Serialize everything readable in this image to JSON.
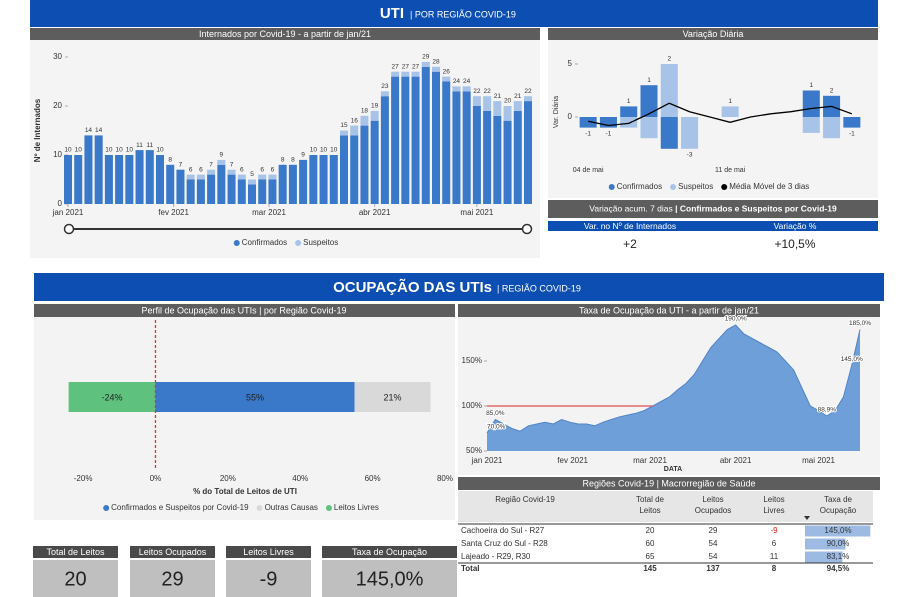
{
  "header": {
    "title": "UTI",
    "subtitle": "| POR REGIÃO COVID-19"
  },
  "chart_data": [
    {
      "type": "stacked_bar",
      "title": "Internados por Covid-19 - a partir de jan/21",
      "ylabel": "Nº de Internados",
      "x": [
        0,
        3,
        6,
        9,
        12,
        15,
        18,
        21,
        24,
        27,
        30,
        33,
        36,
        39,
        42,
        45,
        48,
        51,
        54,
        57,
        60,
        63,
        66,
        69,
        72,
        75,
        78,
        81,
        84,
        87,
        90,
        93,
        96,
        99,
        102,
        105,
        108,
        111,
        114,
        117,
        120,
        123,
        126,
        129,
        132,
        135
      ],
      "xlim": [
        0,
        135
      ],
      "xticks": [
        {
          "value": 0,
          "label": "jan 2021"
        },
        {
          "value": 31,
          "label": "fev 2021"
        },
        {
          "value": 59,
          "label": "mar 2021"
        },
        {
          "value": 90,
          "label": "abr 2021"
        },
        {
          "value": 120,
          "label": "mai 2021"
        }
      ],
      "ylim": [
        0,
        30
      ],
      "yticks": [
        0,
        10,
        20,
        30
      ],
      "series": [
        {
          "name": "Confirmados",
          "color": "#3a78c9",
          "values": [
            10,
            10,
            14,
            14,
            10,
            10,
            10,
            11,
            11,
            10,
            8,
            7,
            5,
            5,
            6,
            8,
            6,
            5,
            4,
            5,
            5,
            8,
            8,
            9,
            10,
            10,
            10,
            14,
            14,
            16,
            17,
            22,
            26,
            26,
            26,
            28,
            27,
            25,
            23,
            23,
            20,
            19,
            18,
            17,
            19,
            21
          ]
        },
        {
          "name": "Suspeitos",
          "color": "#a8c3e8",
          "values": [
            0,
            0,
            0,
            0,
            0,
            0,
            0,
            0,
            0,
            0,
            0,
            0,
            1,
            1,
            1,
            1,
            1,
            1,
            1,
            1,
            1,
            0,
            0,
            0,
            0,
            0,
            0,
            1,
            2,
            2,
            2,
            1,
            1,
            1,
            1,
            1,
            1,
            1,
            1,
            1,
            2,
            3,
            3,
            3,
            2,
            1
          ]
        }
      ],
      "totals": [
        10,
        10,
        14,
        14,
        10,
        10,
        10,
        11,
        11,
        10,
        8,
        7,
        6,
        6,
        7,
        9,
        7,
        6,
        5,
        6,
        6,
        8,
        8,
        9,
        10,
        10,
        10,
        15,
        16,
        18,
        19,
        23,
        27,
        27,
        27,
        29,
        28,
        26,
        24,
        24,
        22,
        22,
        21,
        20,
        21,
        22
      ]
    },
    {
      "type": "diverging_bar",
      "title": "Variação Diária",
      "ylabel": "Var. Diária",
      "categories": [
        "04 de mai",
        null,
        null,
        null,
        null,
        null,
        null,
        "11 de mai",
        null,
        null,
        null,
        null,
        null,
        null
      ],
      "ylim": [
        -5,
        6
      ],
      "yticks": [
        0,
        5
      ],
      "series": [
        {
          "name": "Confirmados",
          "color": "#3a78c9",
          "values": [
            -1,
            -1,
            1,
            3,
            -3,
            0,
            0,
            0,
            0,
            0,
            0,
            2.5,
            2,
            -1
          ]
        },
        {
          "name": "Suspeitos",
          "color": "#a8c3e8",
          "values": [
            0,
            0,
            -1,
            -2,
            5,
            -3,
            0,
            1,
            0,
            0,
            0,
            -1.5,
            -2,
            0
          ]
        },
        {
          "name": "Média Móvel de 3 dias",
          "color": "#000000",
          "type": "line",
          "values": [
            -0.4,
            -0.8,
            -0.6,
            0.3,
            1.3,
            0.5,
            0,
            -0.5,
            0,
            0.3,
            0.5,
            0.8,
            1,
            0.3
          ]
        }
      ],
      "labels": [
        -1,
        -1,
        1,
        1,
        2,
        -3,
        null,
        1,
        null,
        null,
        null,
        1,
        2,
        -1
      ]
    },
    {
      "type": "stacked_hbar",
      "title": "Perfil de Ocupação das UTIs | por Região Covid-19",
      "xlabel": "% do Total de Leitos de UTI",
      "xlim": [
        -25,
        80
      ],
      "xticks": [
        {
          "value": -20,
          "label": "-20%"
        },
        {
          "value": 0,
          "label": "0%"
        },
        {
          "value": 20,
          "label": "20%"
        },
        {
          "value": 40,
          "label": "40%"
        },
        {
          "value": 60,
          "label": "60%"
        },
        {
          "value": 80,
          "label": "80%"
        }
      ],
      "reference_line": 0,
      "series": [
        {
          "name": "Confirmados e Suspeitos por Covid-19",
          "color": "#3a78c9",
          "values": [
            55
          ],
          "value_labels": [
            "55%"
          ]
        },
        {
          "name": "Outras Causas",
          "color": "#d9d9d9",
          "values": [
            21
          ],
          "value_labels": [
            "21%"
          ]
        },
        {
          "name": "Leitos Livres",
          "color": "#5ec27e",
          "values": [
            -24
          ],
          "value_labels": [
            "-24%"
          ]
        }
      ]
    },
    {
      "type": "area",
      "title": "Taxa de Ocupação da UTI - a partir de jan/21",
      "xlabel": "DATA",
      "color": "#6f9fd8",
      "x": [
        0,
        3,
        6,
        9,
        12,
        15,
        18,
        21,
        24,
        27,
        30,
        33,
        36,
        39,
        42,
        45,
        48,
        51,
        54,
        57,
        60,
        63,
        66,
        69,
        72,
        75,
        78,
        81,
        84,
        87,
        90,
        93,
        96,
        99,
        102,
        105,
        108,
        111,
        114,
        117,
        120,
        123,
        126,
        129,
        132,
        135
      ],
      "values": [
        70,
        85,
        80,
        75,
        72,
        78,
        80,
        82,
        80,
        85,
        82,
        80,
        80,
        78,
        82,
        85,
        88,
        90,
        92,
        95,
        100,
        105,
        110,
        118,
        125,
        135,
        150,
        165,
        175,
        185,
        190,
        180,
        175,
        170,
        165,
        160,
        150,
        140,
        120,
        100,
        95,
        88.9,
        95,
        110,
        145,
        185
      ],
      "value_labels": [
        "70,0%",
        "85,0%",
        null,
        null,
        null,
        null,
        null,
        null,
        null,
        null,
        null,
        null,
        null,
        null,
        null,
        null,
        null,
        null,
        null,
        null,
        null,
        null,
        null,
        null,
        null,
        null,
        null,
        null,
        null,
        null,
        "190,0%",
        null,
        null,
        null,
        null,
        null,
        null,
        null,
        null,
        null,
        null,
        "88,9%",
        null,
        null,
        "145,0%",
        "185,0%"
      ],
      "xlim": [
        0,
        135
      ],
      "xticks": [
        {
          "value": 0,
          "label": "jan 2021"
        },
        {
          "value": 31,
          "label": "fev 2021"
        },
        {
          "value": 59,
          "label": "mar 2021"
        },
        {
          "value": 90,
          "label": "abr 2021"
        },
        {
          "value": 120,
          "label": "mai 2021"
        }
      ],
      "ylim": [
        50,
        195
      ],
      "yticks": [
        {
          "value": 50,
          "label": "50%"
        },
        {
          "value": 100,
          "label": "100%"
        },
        {
          "value": 150,
          "label": "150%"
        }
      ],
      "reference_line": {
        "y": 100,
        "x": [
          0,
          60
        ],
        "color": "#e05050"
      }
    }
  ],
  "variation": {
    "title": "Variação acum. 7 dias",
    "subtitle": "| Confirmados e Suspeitos por Covid-19",
    "columns": [
      "Var. no Nº de Internados",
      "Variação %"
    ],
    "values": [
      "+2",
      "+10,5%"
    ]
  },
  "section2": {
    "title": "OCUPAÇÃO DAS UTIs",
    "subtitle": "| REGIÃO COVID-19"
  },
  "table": {
    "title": "Regiões Covid-19 | Macrorregião de Saúde",
    "columns": [
      [
        "Região Covid-19"
      ],
      [
        "Total de",
        "Leitos"
      ],
      [
        "Leitos",
        "Ocupados"
      ],
      [
        "Leitos",
        "Livres"
      ],
      [
        "Taxa de",
        "Ocupação"
      ]
    ],
    "rows": [
      [
        "Cachoeira do Sul - R27",
        20,
        29,
        -9
      ],
      [
        "Santa Cruz do Sul - R28",
        60,
        54,
        6
      ],
      [
        "Lajeado - R29, R30",
        65,
        54,
        11
      ]
    ],
    "occupancy": {
      "values": [
        145,
        90,
        83.1
      ],
      "value_labels": [
        "145,0%",
        "90,0%",
        "83,1%"
      ]
    },
    "total": [
      "Total",
      145,
      137,
      8,
      "94,5%"
    ]
  },
  "kpis": [
    {
      "label": "Total de Leitos",
      "value": "20"
    },
    {
      "label": "Leitos Ocupados",
      "value": "29"
    },
    {
      "label": "Leitos Livres",
      "value": "-9"
    },
    {
      "label": "Taxa de Ocupação",
      "value": "145,0%"
    }
  ]
}
